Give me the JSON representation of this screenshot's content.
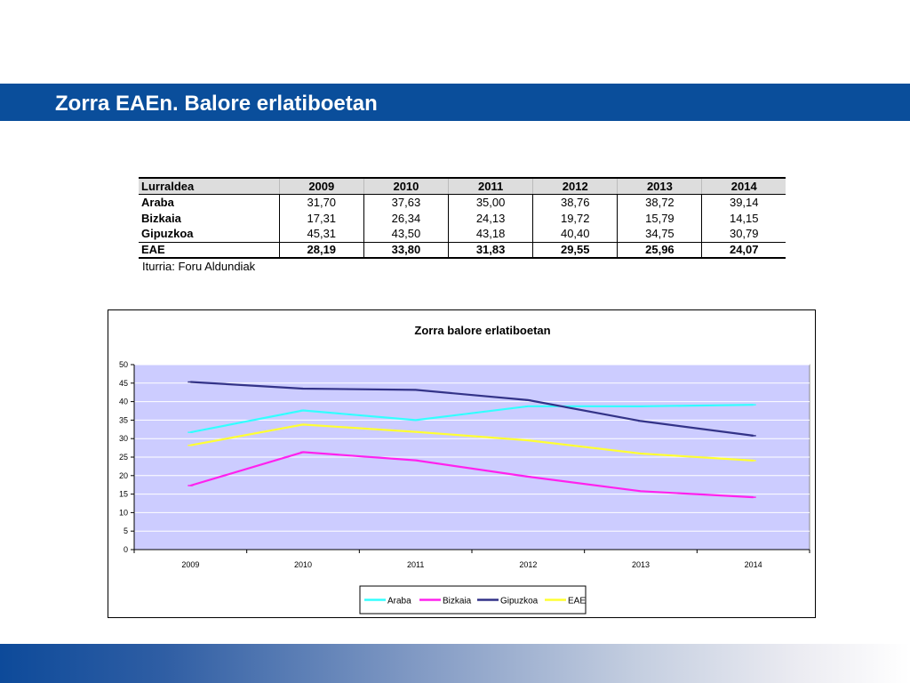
{
  "header": {
    "title": "Zorra EAEn. Balore erlatiboetan"
  },
  "table": {
    "headers": [
      "Lurraldea",
      "2009",
      "2010",
      "2011",
      "2012",
      "2013",
      "2014"
    ],
    "rows": [
      [
        "Araba",
        "31,70",
        "37,63",
        "35,00",
        "38,76",
        "38,72",
        "39,14"
      ],
      [
        "Bizkaia",
        "17,31",
        "26,34",
        "24,13",
        "19,72",
        "15,79",
        "14,15"
      ],
      [
        "Gipuzkoa",
        "45,31",
        "43,50",
        "43,18",
        "40,40",
        "34,75",
        "30,79"
      ]
    ],
    "total": [
      "EAE",
      "28,19",
      "33,80",
      "31,83",
      "29,55",
      "25,96",
      "24,07"
    ],
    "source": "Iturria: Foru Aldundiak"
  },
  "chart_data": {
    "type": "line",
    "title": "Zorra  balore erlatiboetan",
    "categories": [
      "2009",
      "2010",
      "2011",
      "2012",
      "2013",
      "2014"
    ],
    "ylim": [
      0,
      50
    ],
    "yticks": [
      0,
      5,
      10,
      15,
      20,
      25,
      30,
      35,
      40,
      45,
      50
    ],
    "grid": true,
    "plot_background": "#ccccff",
    "legend_position": "bottom",
    "series": [
      {
        "name": "Araba",
        "color": "#33ffff",
        "values": [
          31.7,
          37.63,
          35.0,
          38.76,
          38.72,
          39.14
        ]
      },
      {
        "name": "Bizkaia",
        "color": "#ff22ee",
        "values": [
          17.31,
          26.34,
          24.13,
          19.72,
          15.79,
          14.15
        ]
      },
      {
        "name": "Gipuzkoa",
        "color": "#333388",
        "values": [
          45.31,
          43.5,
          43.18,
          40.4,
          34.75,
          30.79
        ]
      },
      {
        "name": "EAE",
        "color": "#ffff33",
        "values": [
          28.19,
          33.8,
          31.83,
          29.55,
          25.96,
          24.07
        ]
      }
    ]
  }
}
